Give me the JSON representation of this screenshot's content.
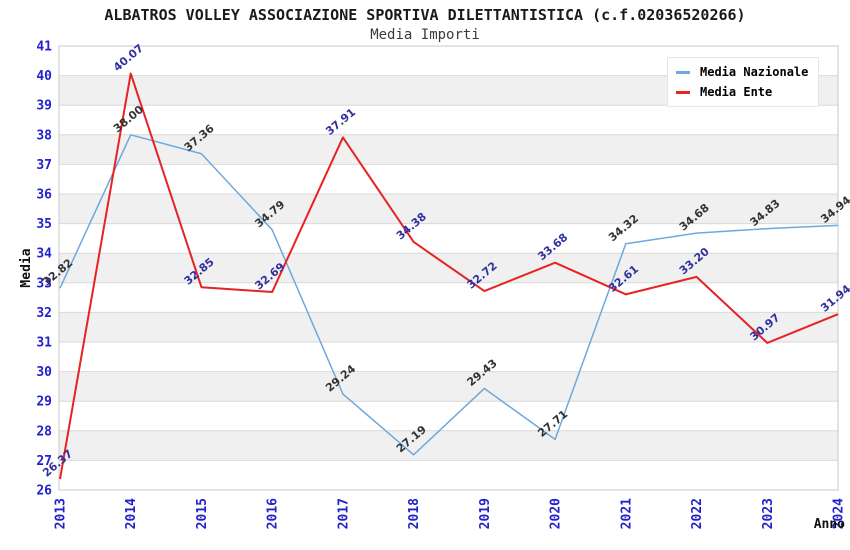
{
  "chart_data": {
    "type": "line",
    "title": "ALBATROS VOLLEY ASSOCIAZIONE SPORTIVA DILETTANTISTICA (c.f.02036520266)",
    "subtitle": "Media Importi",
    "xlabel": "Anno",
    "ylabel": "Media",
    "categories": [
      "2013",
      "2014",
      "2015",
      "2016",
      "2017",
      "2018",
      "2019",
      "2020",
      "2021",
      "2022",
      "2023",
      "2024"
    ],
    "series": [
      {
        "name": "Media Nazionale",
        "color": "#6fa8dc",
        "label_color": "#333333",
        "values": [
          32.82,
          38.0,
          37.36,
          34.79,
          29.24,
          27.19,
          29.43,
          27.71,
          34.32,
          34.68,
          34.83,
          34.94
        ]
      },
      {
        "name": "Media Ente",
        "color": "#e62222",
        "label_color": "#3030a0",
        "values": [
          26.37,
          40.07,
          32.85,
          32.69,
          37.91,
          34.38,
          32.72,
          33.68,
          32.61,
          33.2,
          30.97,
          31.94
        ]
      }
    ],
    "ylim": [
      26,
      41
    ],
    "ytick_step": 1,
    "value_decimals": 2,
    "grid": true,
    "legend_position": "top-right",
    "colors": {
      "tick_label": "#2222cc",
      "band": "#f0f0f0",
      "gridline": "#d9d9d9",
      "plot_border": "#c8c8c8",
      "title": "#1a1a1a",
      "axis_title": "#111111"
    }
  }
}
